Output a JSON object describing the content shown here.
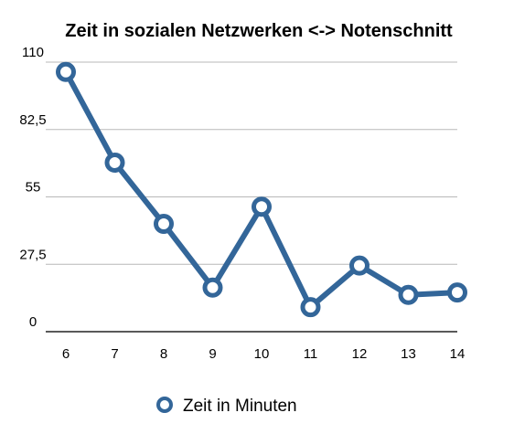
{
  "chart_data": {
    "type": "line",
    "title": "Zeit in sozialen Netzwerken <-> Notenschnitt",
    "xlabel": "",
    "ylabel": "",
    "categories": [
      "6",
      "7",
      "8",
      "9",
      "10",
      "11",
      "12",
      "13",
      "14"
    ],
    "series": [
      {
        "name": "Zeit in Minuten",
        "values": [
          106,
          69,
          44,
          18,
          51,
          10,
          27,
          15,
          16
        ],
        "color": "#336699"
      }
    ],
    "ylim": [
      0,
      110
    ],
    "yticks": [
      "0",
      "27,5",
      "55",
      "82,5",
      "110"
    ],
    "ytick_values": [
      0,
      27.5,
      55,
      82.5,
      110
    ],
    "grid": true,
    "legend_position": "bottom",
    "marker": "hollow-circle"
  }
}
